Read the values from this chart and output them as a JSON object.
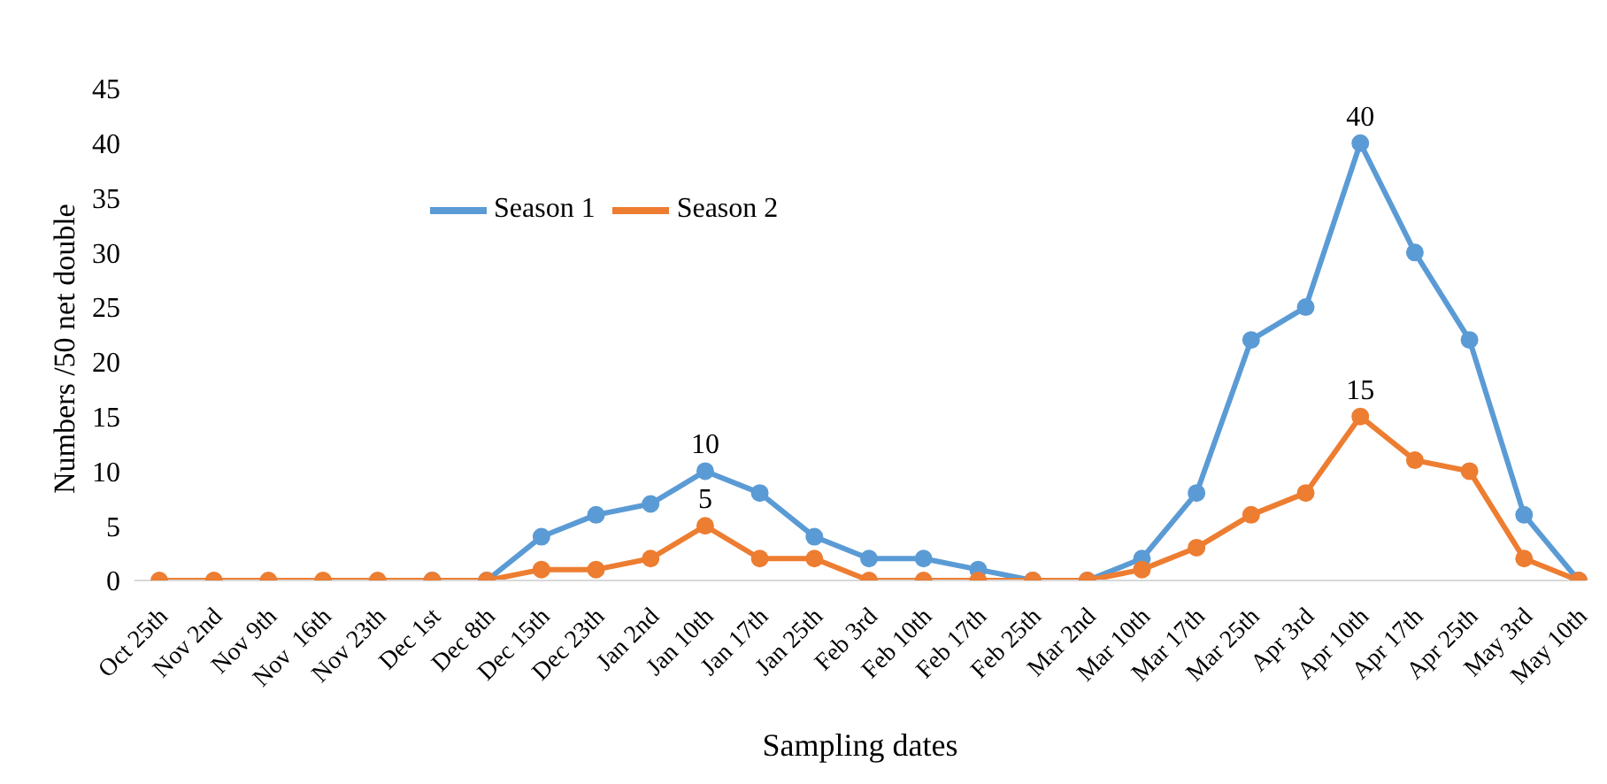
{
  "chart_data": {
    "type": "line",
    "xlabel": "Sampling dates",
    "ylabel": "Numbers /50 net double",
    "categories": [
      "Oct 25th",
      "Nov 2nd",
      "Nov 9th",
      "Nov  16th",
      "Nov 23th",
      "Dec 1st",
      "Dec 8th",
      "Dec 15th",
      "Dec 23th",
      "Jan 2nd",
      "Jan 10th",
      "Jan 17th",
      "Jan 25th",
      "Feb 3rd",
      "Feb 10th",
      "Feb 17th",
      "Feb 25th",
      "Mar 2nd",
      "Mar 10th",
      "Mar 17th",
      "Mar 25th",
      "Apr 3rd",
      "Apr 10th",
      "Apr 17th",
      "Apr 25th",
      "May 3rd",
      "May 10th"
    ],
    "series": [
      {
        "name": "Season 1",
        "color": "#5b9bd5",
        "values": [
          null,
          null,
          null,
          null,
          null,
          0,
          0,
          4,
          6,
          7,
          10,
          8,
          4,
          2,
          2,
          1,
          0,
          0,
          2,
          8,
          22,
          25,
          40,
          30,
          22,
          6,
          0
        ],
        "value_labels": [
          null,
          null,
          null,
          null,
          null,
          null,
          null,
          null,
          null,
          null,
          "10",
          null,
          null,
          null,
          null,
          null,
          null,
          null,
          null,
          null,
          null,
          null,
          "40",
          null,
          null,
          null,
          null
        ]
      },
      {
        "name": "Season 2",
        "color": "#ed7d31",
        "values": [
          0,
          0,
          0,
          0,
          0,
          0,
          0,
          1,
          1,
          2,
          5,
          2,
          2,
          0,
          0,
          0,
          0,
          0,
          1,
          3,
          6,
          8,
          15,
          11,
          10,
          2,
          0
        ],
        "value_labels": [
          null,
          null,
          null,
          null,
          null,
          null,
          null,
          null,
          null,
          null,
          "5",
          null,
          null,
          null,
          null,
          null,
          null,
          null,
          null,
          null,
          null,
          null,
          "15",
          null,
          null,
          null,
          null
        ]
      }
    ],
    "ylim": [
      0,
      45
    ],
    "yticks": [
      0,
      5,
      10,
      15,
      20,
      25,
      30,
      35,
      40,
      45
    ],
    "grid": false,
    "legend": "top left",
    "marker": "circle",
    "line_style": "solid"
  }
}
